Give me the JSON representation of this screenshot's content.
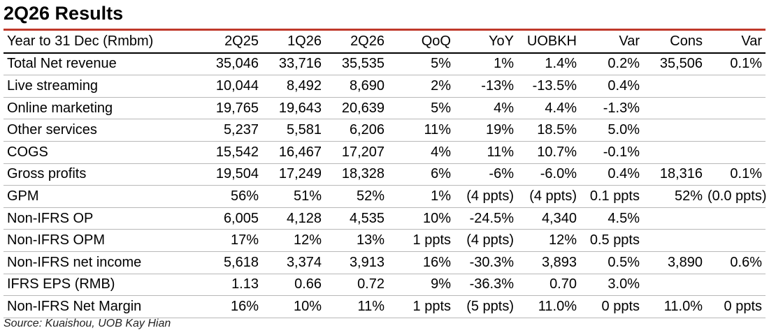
{
  "title": "2Q26 Results",
  "accent_color": "#c0392b",
  "columns": [
    "Year to 31 Dec (Rmbm)",
    "2Q25",
    "1Q26",
    "2Q26",
    "QoQ",
    "YoY",
    "UOBKH",
    "Var",
    "Cons",
    "Var"
  ],
  "rows": [
    {
      "label": "Total Net revenue",
      "cells": [
        "35,046",
        "33,716",
        "35,535",
        "5%",
        "1%",
        "1.4%",
        "0.2%",
        "35,506",
        "0.1%"
      ]
    },
    {
      "label": "Live streaming",
      "cells": [
        "10,044",
        "8,492",
        "8,690",
        "2%",
        "-13%",
        "-13.5%",
        "0.4%",
        "",
        ""
      ]
    },
    {
      "label": "Online marketing",
      "cells": [
        "19,765",
        "19,643",
        "20,639",
        "5%",
        "4%",
        "4.4%",
        "-1.3%",
        "",
        ""
      ]
    },
    {
      "label": "Other services",
      "cells": [
        "5,237",
        "5,581",
        "6,206",
        "11%",
        "19%",
        "18.5%",
        "5.0%",
        "",
        ""
      ]
    },
    {
      "label": "COGS",
      "cells": [
        "15,542",
        "16,467",
        "17,207",
        "4%",
        "11%",
        "10.7%",
        "-0.1%",
        "",
        ""
      ]
    },
    {
      "label": "Gross profits",
      "cells": [
        "19,504",
        "17,249",
        "18,328",
        "6%",
        "-6%",
        "-6.0%",
        "0.4%",
        "18,316",
        "0.1%"
      ]
    },
    {
      "label": "GPM",
      "cells": [
        "56%",
        "51%",
        "52%",
        "1%",
        "(4 ppts)",
        "(4 ppts)",
        "0.1 ppts",
        "52%",
        "(0.0 ppts)"
      ]
    },
    {
      "label": "Non-IFRS OP",
      "cells": [
        "6,005",
        "4,128",
        "4,535",
        "10%",
        "-24.5%",
        "4,340",
        "4.5%",
        "",
        ""
      ]
    },
    {
      "label": "Non-IFRS OPM",
      "cells": [
        "17%",
        "12%",
        "13%",
        "1 ppts",
        "(4 ppts)",
        "12%",
        "0.5 ppts",
        "",
        ""
      ]
    },
    {
      "label": "Non-IFRS net income",
      "cells": [
        "5,618",
        "3,374",
        "3,913",
        "16%",
        "-30.3%",
        "3,893",
        "0.5%",
        "3,890",
        "0.6%"
      ]
    },
    {
      "label": "IFRS EPS (RMB)",
      "cells": [
        "1.13",
        "0.66",
        "0.72",
        "9%",
        "-36.3%",
        "0.70",
        "3.0%",
        "",
        ""
      ]
    },
    {
      "label": "Non-IFRS Net Margin",
      "cells": [
        "16%",
        "10%",
        "11%",
        "1 ppts",
        "(5 ppts)",
        "11.0%",
        "0 ppts",
        "11.0%",
        "0 ppts"
      ]
    }
  ],
  "source": "Source: Kuaishou, UOB Kay Hian"
}
